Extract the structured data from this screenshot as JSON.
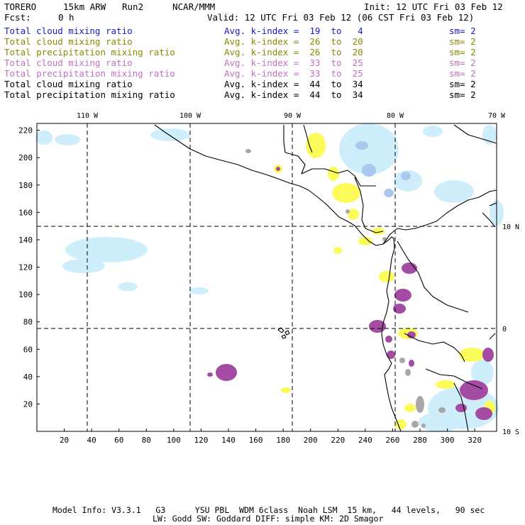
{
  "header": {
    "model": "TORERO",
    "resolution": "15km ARW",
    "run": "Run2",
    "org": "NCAR/MMM",
    "init": "Init: 12 UTC Fri 03 Feb 12",
    "fcst_label": "Fcst:",
    "fcst_value": "0 h",
    "valid": "Valid: 12 UTC Fri 03 Feb 12 (06 CST Fri 03 Feb 12)"
  },
  "legend": [
    {
      "label": "Total cloud mixing ratio",
      "avg": "Avg. k-index =  19  to   4",
      "sm": "sm= 2",
      "color": "#1a1acc"
    },
    {
      "label": "Total cloud mixing ratio",
      "avg": "Avg. k-index =  26  to  20",
      "sm": "sm= 2",
      "color": "#8a8a00"
    },
    {
      "label": "Total precipitation mixing ratio",
      "avg": "Avg. k-index =  26  to  20",
      "sm": "sm= 2",
      "color": "#8a8a00"
    },
    {
      "label": "Total cloud mixing ratio",
      "avg": "Avg. k-index =  33  to  25",
      "sm": "sm= 2",
      "color": "#c070c0"
    },
    {
      "label": "Total precipitation mixing ratio",
      "avg": "Avg. k-index =  33  to  25",
      "sm": "sm= 2",
      "color": "#c070c0"
    },
    {
      "label": "Total cloud mixing ratio",
      "avg": "Avg. k-index =  44  to  34",
      "sm": "sm= 2",
      "color": "#000000"
    },
    {
      "label": "Total precipitation mixing ratio",
      "avg": "Avg. k-index =  44  to  34",
      "sm": "sm= 2",
      "color": "#000000"
    }
  ],
  "map": {
    "lon_labels": [
      "110 W",
      "100 W",
      "90 W",
      "80 W",
      "70 W"
    ],
    "lat_labels": [
      "10 N",
      "0",
      "10 S"
    ],
    "x_ticks": [
      "20",
      "40",
      "60",
      "80",
      "100",
      "120",
      "140",
      "160",
      "180",
      "200",
      "220",
      "240",
      "260",
      "280",
      "300",
      "320"
    ],
    "y_ticks": [
      "220",
      "200",
      "180",
      "160",
      "140",
      "120",
      "100",
      "80",
      "60",
      "40",
      "20"
    ],
    "colors": {
      "cloud_light": "#cdeefa",
      "cloud_blue": "#a9c8f0",
      "yellow": "#fbfb5a",
      "purple": "#a44ca4",
      "gray": "#a8a8a8",
      "coast": "#000000"
    }
  },
  "footer": {
    "line1": "Model Info: V3.3.1   G3      YSU PBL  WDM 6class  Noah LSM  15 km,   44 levels,   90 sec",
    "line2": "LW: Godd SW: Goddard DIFF: simple KM: 2D Smagor"
  }
}
